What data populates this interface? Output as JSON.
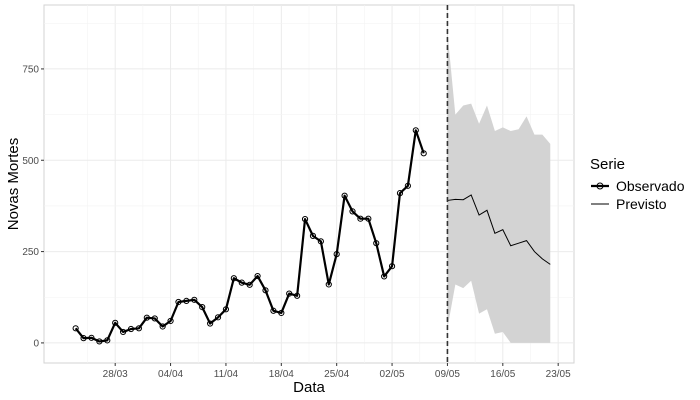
{
  "chart_data": {
    "type": "line",
    "xlabel": "Data",
    "ylabel": "Novas Mortes",
    "x_ticks": [
      "28/03",
      "04/04",
      "11/04",
      "18/04",
      "25/04",
      "02/05",
      "09/05",
      "16/05",
      "23/05"
    ],
    "y_ticks": [
      "0",
      "250",
      "500",
      "750"
    ],
    "ylim": [
      -55,
      925
    ],
    "xlim": [
      "2020-03-19",
      "2020-05-25"
    ],
    "forecast_start": "2020-05-09",
    "legend": {
      "title": "Serie",
      "position": "right",
      "entries": [
        "Observado",
        "Previsto"
      ]
    },
    "colors": {
      "line": "#000000",
      "band": "#d3d3d3",
      "grid": "#ebebeb",
      "panel_border": "#d3d3d3"
    },
    "series": [
      {
        "name": "Observado",
        "x": [
          "2020-03-23",
          "2020-03-24",
          "2020-03-25",
          "2020-03-26",
          "2020-03-27",
          "2020-03-28",
          "2020-03-29",
          "2020-03-30",
          "2020-03-31",
          "2020-04-01",
          "2020-04-02",
          "2020-04-03",
          "2020-04-04",
          "2020-04-05",
          "2020-04-06",
          "2020-04-07",
          "2020-04-08",
          "2020-04-09",
          "2020-04-10",
          "2020-04-11",
          "2020-04-12",
          "2020-04-13",
          "2020-04-14",
          "2020-04-15",
          "2020-04-16",
          "2020-04-17",
          "2020-04-18",
          "2020-04-19",
          "2020-04-20",
          "2020-04-21",
          "2020-04-22",
          "2020-04-23",
          "2020-04-24",
          "2020-04-25",
          "2020-04-26",
          "2020-04-27",
          "2020-04-28",
          "2020-04-29",
          "2020-04-30",
          "2020-05-01",
          "2020-05-02",
          "2020-05-03",
          "2020-05-04",
          "2020-05-05",
          "2020-05-06",
          "2020-05-07",
          "2020-05-08"
        ],
        "values": [
          40,
          13,
          14,
          4,
          7,
          55,
          30,
          38,
          40,
          69,
          67,
          45,
          60,
          112,
          115,
          118,
          98,
          53,
          70,
          92,
          177,
          165,
          159,
          183,
          144,
          88,
          82,
          135,
          129,
          339,
          293,
          278,
          160,
          243,
          403,
          360,
          340,
          340,
          273,
          182,
          210,
          410,
          430,
          582,
          519,
          null,
          null
        ]
      },
      {
        "name": "Previsto",
        "x": [
          "2020-05-09",
          "2020-05-10",
          "2020-05-11",
          "2020-05-12",
          "2020-05-13",
          "2020-05-14",
          "2020-05-15",
          "2020-05-16",
          "2020-05-17",
          "2020-05-18",
          "2020-05-19",
          "2020-05-20",
          "2020-05-21",
          "2020-05-22"
        ],
        "values": [
          390,
          393,
          392,
          405,
          350,
          363,
          300,
          310,
          266,
          273,
          280,
          250,
          230,
          215
        ],
        "lower": [
          40,
          160,
          150,
          170,
          80,
          92,
          25,
          30,
          0,
          0,
          0,
          0,
          0,
          0
        ],
        "upper": [
          850,
          625,
          650,
          655,
          600,
          650,
          580,
          590,
          580,
          585,
          620,
          570,
          570,
          545
        ]
      }
    ]
  }
}
